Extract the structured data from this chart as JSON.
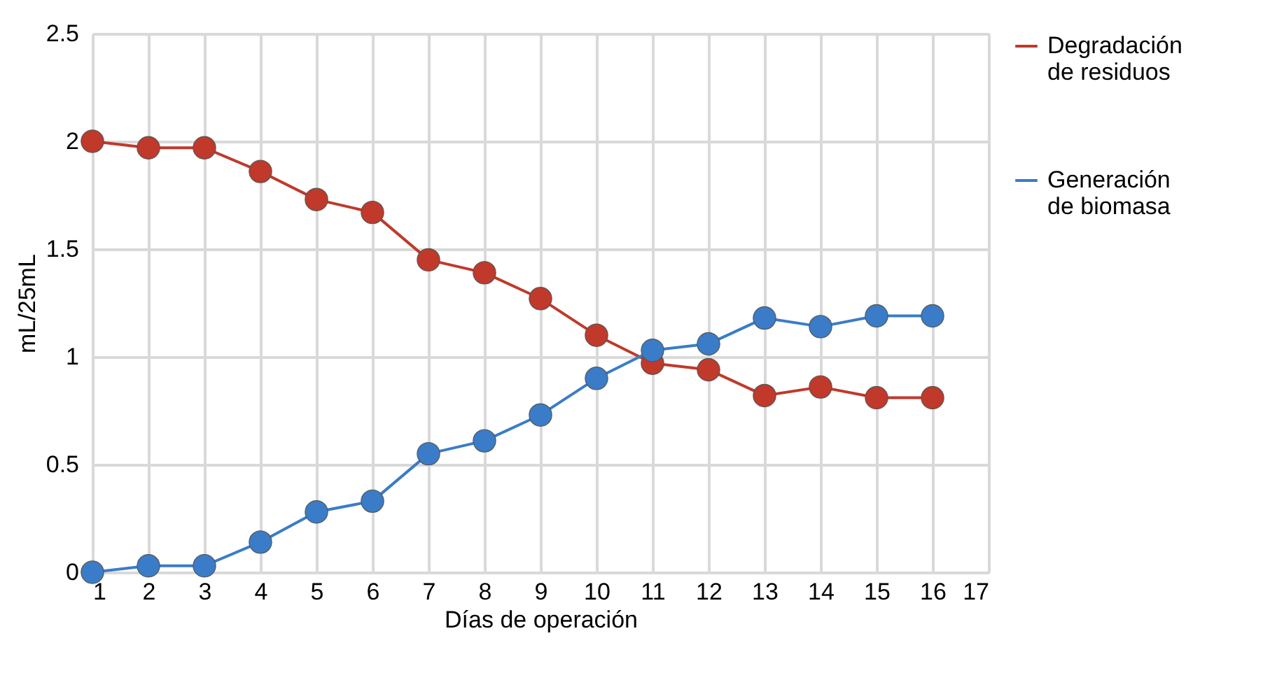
{
  "chart_data": {
    "type": "line",
    "xlabel": "Días de operación",
    "ylabel": "mL/25mL",
    "x": [
      1,
      2,
      3,
      4,
      5,
      6,
      7,
      8,
      9,
      10,
      11,
      12,
      13,
      14,
      15,
      16
    ],
    "series": [
      {
        "name": "Degradación de residuos",
        "color": "#c0392b",
        "values": [
          2.0,
          1.97,
          1.97,
          1.86,
          1.73,
          1.67,
          1.45,
          1.39,
          1.27,
          1.1,
          0.97,
          0.94,
          0.82,
          0.86,
          0.81,
          0.81
        ]
      },
      {
        "name": "Generación de biomasa",
        "color": "#3a7cc7",
        "values": [
          0.0,
          0.03,
          0.03,
          0.14,
          0.28,
          0.33,
          0.55,
          0.61,
          0.73,
          0.9,
          1.03,
          1.06,
          1.18,
          1.14,
          1.19,
          1.19
        ]
      }
    ],
    "xlim": [
      1,
      17
    ],
    "xticks": [
      1,
      2,
      3,
      4,
      5,
      6,
      7,
      8,
      9,
      10,
      11,
      12,
      13,
      14,
      15,
      16,
      17
    ],
    "ylim": [
      0,
      2.5
    ],
    "yticks": [
      0,
      0.5,
      1,
      1.5,
      2,
      2.5
    ],
    "grid": true,
    "legend": "right",
    "marker": "circle",
    "line_style": "solid"
  }
}
